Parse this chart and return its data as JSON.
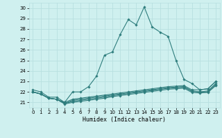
{
  "xlabel": "Humidex (Indice chaleur)",
  "bg_color": "#cff0ef",
  "grid_color": "#b8e0e0",
  "line_color": "#2e7d7d",
  "xlim": [
    -0.5,
    23.5
  ],
  "ylim": [
    20.5,
    30.5
  ],
  "yticks": [
    21,
    22,
    23,
    24,
    25,
    26,
    27,
    28,
    29,
    30
  ],
  "xticks": [
    0,
    1,
    2,
    3,
    4,
    5,
    6,
    7,
    8,
    9,
    10,
    11,
    12,
    13,
    14,
    15,
    16,
    17,
    18,
    19,
    20,
    21,
    22,
    23
  ],
  "lines": [
    {
      "x": [
        0,
        1,
        2,
        3,
        4,
        5,
        6,
        7,
        8,
        9,
        10,
        11,
        12,
        13,
        14,
        15,
        16,
        17,
        18,
        19,
        20,
        21,
        22,
        23
      ],
      "y": [
        22.2,
        22.0,
        21.5,
        21.5,
        21.0,
        22.0,
        22.0,
        22.5,
        23.5,
        25.5,
        25.8,
        27.5,
        28.9,
        28.4,
        30.1,
        28.2,
        27.7,
        27.3,
        25.0,
        23.2,
        22.8,
        22.2,
        22.3,
        23.0
      ]
    },
    {
      "x": [
        0,
        1,
        2,
        3,
        4,
        5,
        6,
        7,
        8,
        9,
        10,
        11,
        12,
        13,
        14,
        15,
        16,
        17,
        18,
        19,
        20,
        21,
        22,
        23
      ],
      "y": [
        22.0,
        21.8,
        21.4,
        21.3,
        21.0,
        21.3,
        21.4,
        21.5,
        21.6,
        21.7,
        21.8,
        21.9,
        22.0,
        22.1,
        22.2,
        22.3,
        22.4,
        22.5,
        22.55,
        22.6,
        22.2,
        22.2,
        22.3,
        23.0
      ]
    },
    {
      "x": [
        0,
        1,
        2,
        3,
        4,
        5,
        6,
        7,
        8,
        9,
        10,
        11,
        12,
        13,
        14,
        15,
        16,
        17,
        18,
        19,
        20,
        21,
        22,
        23
      ],
      "y": [
        22.0,
        21.8,
        21.4,
        21.3,
        20.9,
        21.2,
        21.3,
        21.4,
        21.5,
        21.6,
        21.7,
        21.8,
        21.9,
        22.0,
        22.1,
        22.2,
        22.3,
        22.4,
        22.45,
        22.5,
        22.1,
        22.0,
        22.1,
        22.8
      ]
    },
    {
      "x": [
        0,
        1,
        2,
        3,
        4,
        5,
        6,
        7,
        8,
        9,
        10,
        11,
        12,
        13,
        14,
        15,
        16,
        17,
        18,
        19,
        20,
        21,
        22,
        23
      ],
      "y": [
        22.0,
        21.8,
        21.4,
        21.3,
        20.9,
        21.1,
        21.2,
        21.3,
        21.4,
        21.5,
        21.65,
        21.75,
        21.85,
        21.95,
        22.05,
        22.15,
        22.25,
        22.35,
        22.4,
        22.45,
        22.05,
        22.0,
        22.0,
        22.7
      ]
    },
    {
      "x": [
        0,
        1,
        2,
        3,
        4,
        5,
        6,
        7,
        8,
        9,
        10,
        11,
        12,
        13,
        14,
        15,
        16,
        17,
        18,
        19,
        20,
        21,
        22,
        23
      ],
      "y": [
        22.0,
        21.8,
        21.4,
        21.3,
        20.85,
        21.0,
        21.1,
        21.2,
        21.3,
        21.4,
        21.55,
        21.65,
        21.75,
        21.85,
        21.95,
        22.05,
        22.15,
        22.25,
        22.3,
        22.35,
        21.95,
        21.9,
        21.95,
        22.6
      ]
    }
  ]
}
